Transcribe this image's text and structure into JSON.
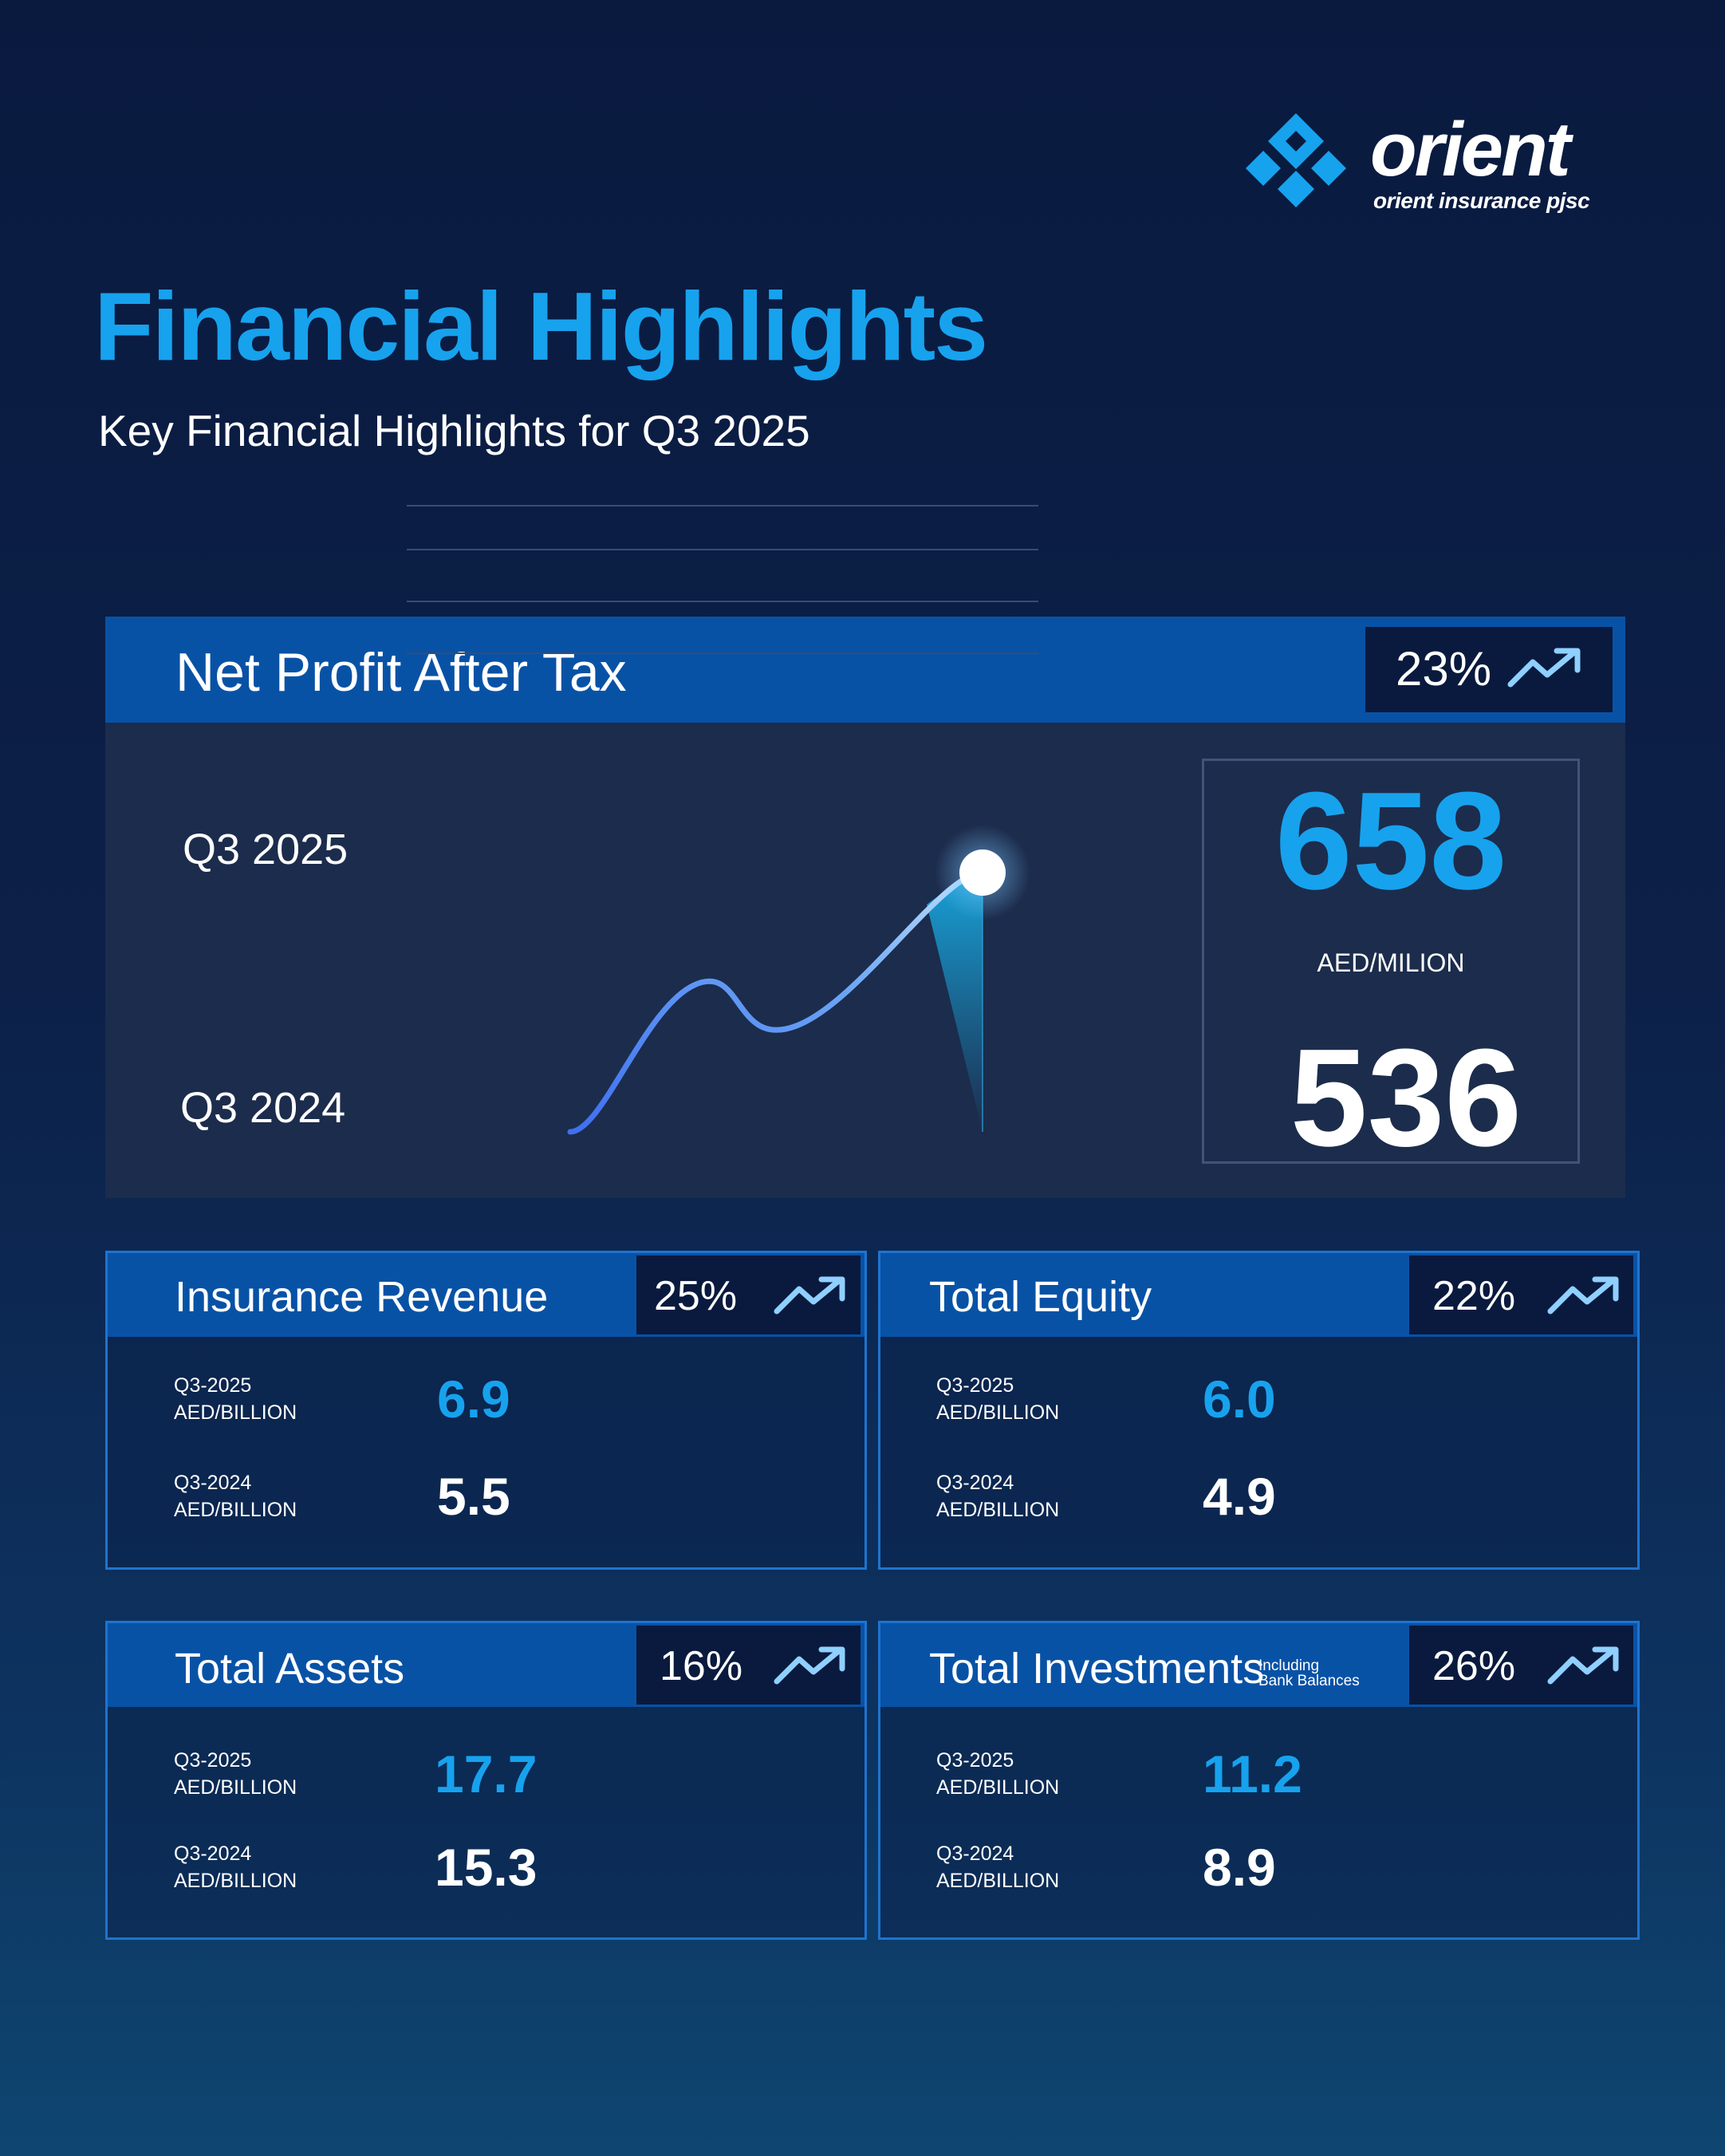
{
  "brand": {
    "wordmark": "orient",
    "subline": "orient insurance pjsc",
    "colors": {
      "accent": "#17a2ee",
      "header_band": "#0852a6",
      "badge_bg": "#0a1a3e",
      "panel_bg": "#1c2c4c"
    }
  },
  "header": {
    "title": "Financial Highlights",
    "subtitle": "Key Financial Highlights for Q3 2025"
  },
  "net_profit": {
    "title": "Net Profit After Tax",
    "change_pct": "23%",
    "trend_icon": "trending-up-icon",
    "label_2025": "Q3 2025",
    "label_2024": "Q3 2024",
    "value_2025": "658",
    "unit": "AED/MILION",
    "value_2024": "536"
  },
  "chart_data": {
    "type": "line",
    "title": "Net Profit After Tax",
    "xlabel": "",
    "ylabel": "",
    "y_tick_labels": [
      "Q3 2024",
      "Q3 2025"
    ],
    "grid": true,
    "series": [
      {
        "name": "Net Profit After Tax (AED/MILION)",
        "x": [
          0,
          0.3,
          0.55,
          1.0
        ],
        "values": [
          536,
          605,
          586,
          658
        ]
      }
    ],
    "ylim": [
      536,
      658
    ],
    "annotations": [
      {
        "label": "658",
        "x": 1.0,
        "y": 658
      }
    ]
  },
  "metrics": [
    {
      "title": "Insurance Revenue",
      "note_line1": "",
      "note_line2": "",
      "change_pct": "25%",
      "label_2025_a": "Q3-2025",
      "label_2025_b": "AED/BILLION",
      "value_2025": "6.9",
      "label_2024_a": "Q3-2024",
      "label_2024_b": "AED/BILLION",
      "value_2024": "5.5"
    },
    {
      "title": "Total Equity",
      "note_line1": "",
      "note_line2": "",
      "change_pct": "22%",
      "label_2025_a": "Q3-2025",
      "label_2025_b": "AED/BILLION",
      "value_2025": "6.0",
      "label_2024_a": "Q3-2024",
      "label_2024_b": "AED/BILLION",
      "value_2024": "4.9"
    },
    {
      "title": "Total Assets",
      "note_line1": "",
      "note_line2": "",
      "change_pct": "16%",
      "label_2025_a": "Q3-2025",
      "label_2025_b": "AED/BILLION",
      "value_2025": "17.7",
      "label_2024_a": "Q3-2024",
      "label_2024_b": "AED/BILLION",
      "value_2024": "15.3"
    },
    {
      "title": "Total Investments",
      "note_line1": "Including",
      "note_line2": "Bank Balances",
      "change_pct": "26%",
      "label_2025_a": "Q3-2025",
      "label_2025_b": "AED/BILLION",
      "value_2025": "11.2",
      "label_2024_a": "Q3-2024",
      "label_2024_b": "AED/BILLION",
      "value_2024": "8.9"
    }
  ]
}
